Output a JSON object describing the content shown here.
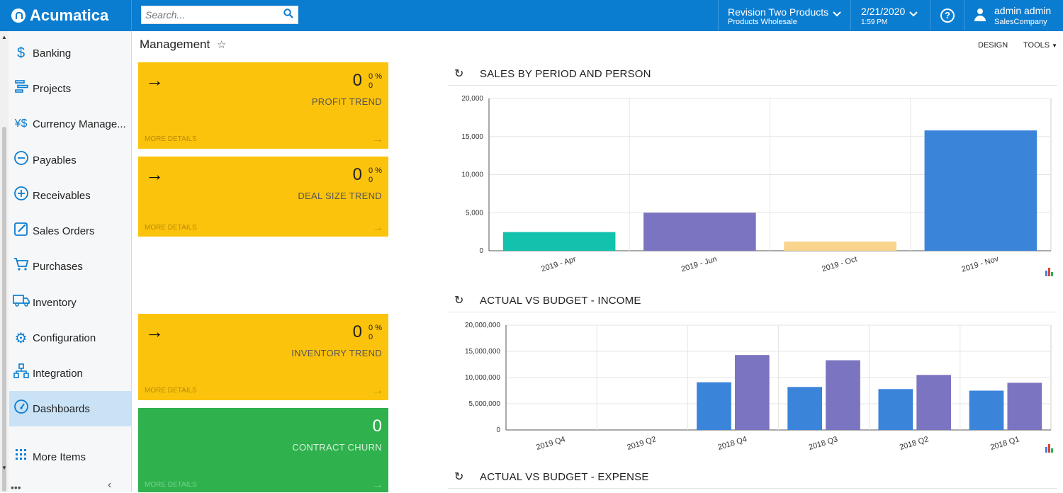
{
  "header": {
    "logo": "Acumatica",
    "search_placeholder": "Search...",
    "company_line1": "Revision Two Products",
    "company_line2": "Products Wholesale",
    "date": "2/21/2020",
    "time": "1:59 PM",
    "user_name": "admin admin",
    "user_company": "SalesCompany"
  },
  "sidebar": {
    "items": [
      {
        "label": "Banking",
        "icon": "dollar-icon"
      },
      {
        "label": "Projects",
        "icon": "projects-icon"
      },
      {
        "label": "Currency Manage...",
        "icon": "currency-icon"
      },
      {
        "label": "Payables",
        "icon": "minus-circle-icon"
      },
      {
        "label": "Receivables",
        "icon": "plus-circle-icon"
      },
      {
        "label": "Sales Orders",
        "icon": "edit-icon"
      },
      {
        "label": "Purchases",
        "icon": "cart-icon"
      },
      {
        "label": "Inventory",
        "icon": "truck-icon"
      },
      {
        "label": "Configuration",
        "icon": "gear-icon"
      },
      {
        "label": "Integration",
        "icon": "integration-icon"
      },
      {
        "label": "Dashboards",
        "icon": "dashboard-icon"
      },
      {
        "label": "More Items",
        "icon": "grid-icon"
      }
    ]
  },
  "page": {
    "title": "Management",
    "design_label": "DESIGN",
    "tools_label": "TOOLS"
  },
  "tiles": [
    {
      "value": "0",
      "pct": "0 %",
      "sub": "0",
      "title": "PROFIT TREND",
      "more": "MORE DETAILS"
    },
    {
      "value": "0",
      "pct": "0 %",
      "sub": "0",
      "title": "DEAL SIZE TREND",
      "more": "MORE DETAILS"
    },
    {
      "value": "0",
      "pct": "0 %",
      "sub": "0",
      "title": "INVENTORY TREND",
      "more": "MORE DETAILS"
    },
    {
      "value": "0",
      "title": "CONTRACT CHURN",
      "more": "MORE DETAILS"
    }
  ],
  "chart_headers": {
    "c1": "SALES BY PERIOD AND PERSON",
    "c2": "ACTUAL VS BUDGET - INCOME",
    "c3": "ACTUAL VS BUDGET - EXPENSE"
  },
  "colors": {
    "accent": "#0b7dd1",
    "tile_yellow": "#fcc30c",
    "tile_green": "#2fb14d"
  },
  "chart_data": [
    {
      "type": "bar",
      "title": "SALES BY PERIOD AND PERSON",
      "categories": [
        "2019 - Apr",
        "2019 - Jun",
        "2019 - Oct",
        "2019 - Nov"
      ],
      "values": [
        2450,
        5000,
        1200,
        15800
      ],
      "bar_colors": [
        "#12c2ac",
        "#7b74c0",
        "#f8d48c",
        "#3a84da"
      ],
      "yticks": [
        "0",
        "5,000",
        "10,000",
        "15,000",
        "20,000"
      ],
      "ylim": [
        0,
        20000
      ],
      "grid": true
    },
    {
      "type": "bar",
      "title": "ACTUAL VS BUDGET - INCOME",
      "categories": [
        "2019 Q4",
        "2019 Q2",
        "2018 Q4",
        "2018 Q3",
        "2018 Q2",
        "2018 Q1"
      ],
      "series": [
        {
          "values": [
            0,
            0,
            9100000,
            8200000,
            7800000,
            7500000
          ],
          "color": "#3a84da"
        },
        {
          "values": [
            0,
            0,
            14300000,
            13300000,
            10500000,
            9000000
          ],
          "color": "#7b74c0"
        }
      ],
      "yticks": [
        "0",
        "5,000,000",
        "10,000,000",
        "15,000,000",
        "20,000,000"
      ],
      "ylim": [
        0,
        20000000
      ],
      "grid": true
    }
  ]
}
